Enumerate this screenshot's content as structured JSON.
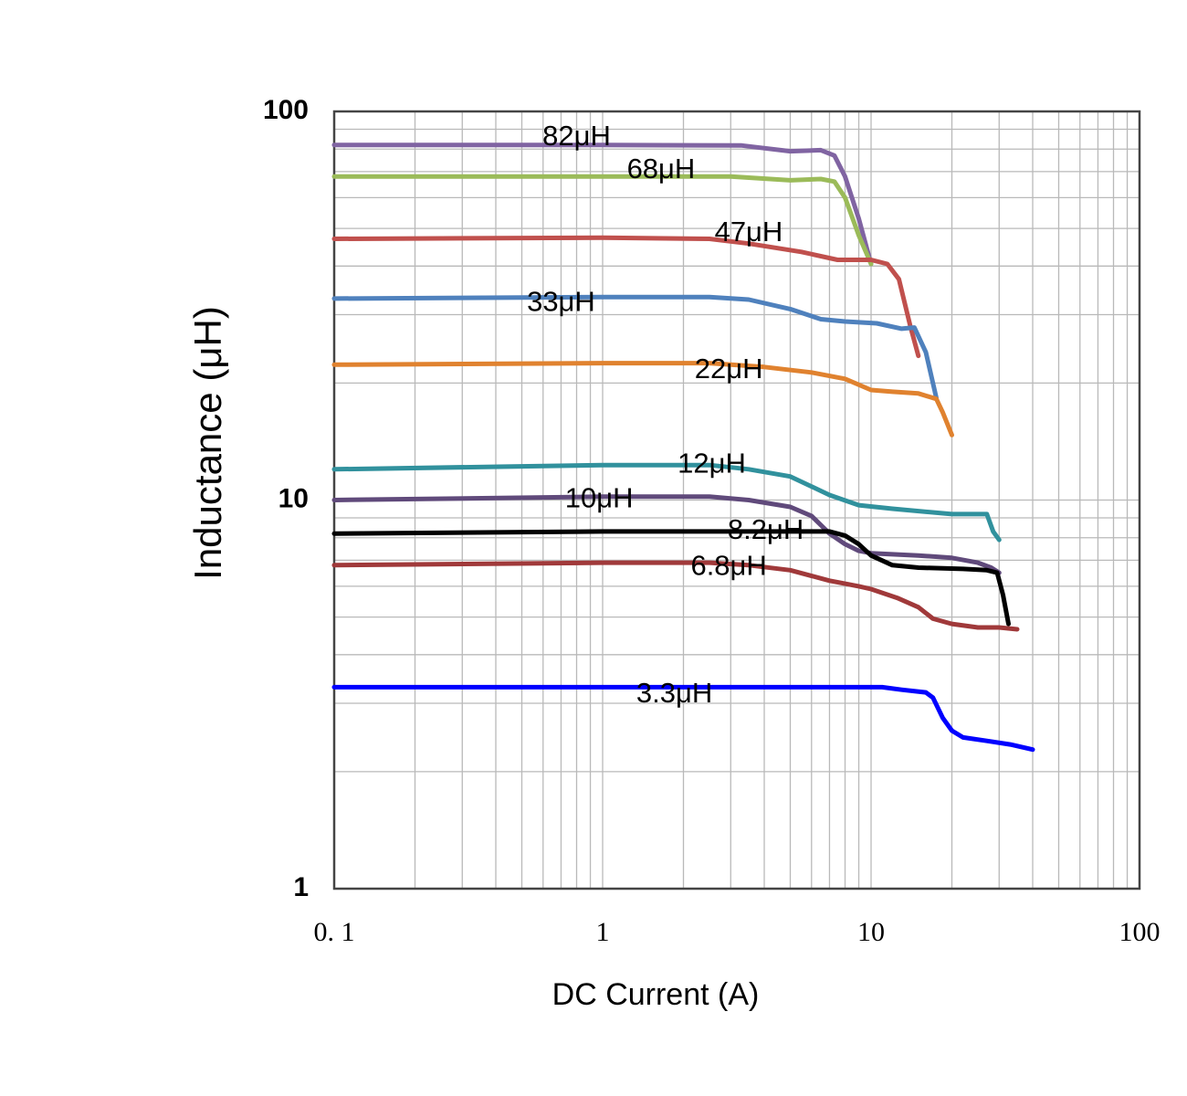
{
  "chart_data": {
    "type": "line",
    "xlabel": "DC Current (A)",
    "ylabel": "Inductance (μH)",
    "x_scale": "log",
    "y_scale": "log",
    "xlim": [
      0.1,
      100
    ],
    "ylim": [
      1,
      100
    ],
    "x_ticks": [
      "0. 1",
      "1",
      "10",
      "100"
    ],
    "y_ticks": [
      "100",
      "10",
      "1"
    ],
    "grid": true,
    "series": [
      {
        "name": "82μH",
        "color": "#8064a2",
        "points": [
          [
            0.1,
            82
          ],
          [
            1,
            82
          ],
          [
            3.3,
            81.7
          ],
          [
            5,
            79
          ],
          [
            6.5,
            79.5
          ],
          [
            7.3,
            77
          ],
          [
            8,
            68
          ],
          [
            9,
            53
          ],
          [
            10,
            40.5
          ]
        ]
      },
      {
        "name": "68μH",
        "color": "#9bbb59",
        "points": [
          [
            0.1,
            68
          ],
          [
            1,
            68
          ],
          [
            3,
            68
          ],
          [
            5,
            66.5
          ],
          [
            6.5,
            67
          ],
          [
            7.3,
            66
          ],
          [
            8,
            60
          ],
          [
            9,
            48
          ],
          [
            10,
            40.5
          ]
        ]
      },
      {
        "name": "47μH",
        "color": "#c0504d",
        "points": [
          [
            0.1,
            47
          ],
          [
            1,
            47.3
          ],
          [
            2.5,
            47
          ],
          [
            3.5,
            45.7
          ],
          [
            5.5,
            43.5
          ],
          [
            7.5,
            41.5
          ],
          [
            10,
            41.5
          ],
          [
            11.5,
            40.5
          ],
          [
            12.7,
            37
          ],
          [
            14,
            28
          ],
          [
            15,
            23.5
          ]
        ]
      },
      {
        "name": "33μH",
        "color": "#4f81bd",
        "points": [
          [
            0.1,
            33
          ],
          [
            1,
            33.3
          ],
          [
            2.5,
            33.3
          ],
          [
            3.5,
            32.8
          ],
          [
            5,
            31
          ],
          [
            6.5,
            29.2
          ],
          [
            8,
            28.8
          ],
          [
            10.5,
            28.5
          ],
          [
            13,
            27.6
          ],
          [
            14.5,
            27.8
          ],
          [
            16,
            24
          ],
          [
            17.5,
            18.3
          ]
        ]
      },
      {
        "name": "22μH",
        "color": "#e0822f",
        "points": [
          [
            0.1,
            22.3
          ],
          [
            1,
            22.5
          ],
          [
            2.5,
            22.5
          ],
          [
            4,
            22
          ],
          [
            6,
            21.3
          ],
          [
            8,
            20.5
          ],
          [
            10,
            19.2
          ],
          [
            12,
            19
          ],
          [
            15,
            18.8
          ],
          [
            17.5,
            18.2
          ],
          [
            18.5,
            16.8
          ],
          [
            20,
            14.7
          ]
        ]
      },
      {
        "name": "12μH",
        "color": "#31919d",
        "points": [
          [
            0.1,
            12
          ],
          [
            1,
            12.3
          ],
          [
            2.5,
            12.3
          ],
          [
            3.5,
            12
          ],
          [
            5,
            11.5
          ],
          [
            7,
            10.3
          ],
          [
            9,
            9.7
          ],
          [
            12,
            9.5
          ],
          [
            20,
            9.2
          ],
          [
            27,
            9.2
          ],
          [
            28.5,
            8.3
          ],
          [
            30,
            7.9
          ]
        ]
      },
      {
        "name": "10μH",
        "color": "#604a7b",
        "points": [
          [
            0.1,
            10
          ],
          [
            1,
            10.2
          ],
          [
            2.5,
            10.2
          ],
          [
            3.5,
            10
          ],
          [
            5,
            9.6
          ],
          [
            6,
            9.1
          ],
          [
            7,
            8.2
          ],
          [
            8,
            7.7
          ],
          [
            9,
            7.4
          ],
          [
            10,
            7.3
          ],
          [
            15,
            7.2
          ],
          [
            20,
            7.1
          ],
          [
            25,
            6.9
          ],
          [
            28,
            6.7
          ],
          [
            30,
            6.5
          ]
        ]
      },
      {
        "name": "8.2μH",
        "color": "#000000",
        "points": [
          [
            0.1,
            8.2
          ],
          [
            1,
            8.3
          ],
          [
            2.5,
            8.3
          ],
          [
            5,
            8.3
          ],
          [
            7,
            8.3
          ],
          [
            8,
            8.1
          ],
          [
            9,
            7.7
          ],
          [
            10,
            7.2
          ],
          [
            12,
            6.8
          ],
          [
            15,
            6.7
          ],
          [
            22,
            6.65
          ],
          [
            27,
            6.6
          ],
          [
            29.5,
            6.5
          ],
          [
            31,
            5.7
          ],
          [
            32.5,
            4.8
          ]
        ]
      },
      {
        "name": "6.8μH",
        "color": "#a0393a",
        "points": [
          [
            0.1,
            6.8
          ],
          [
            1,
            6.9
          ],
          [
            2.5,
            6.9
          ],
          [
            3.5,
            6.8
          ],
          [
            5,
            6.6
          ],
          [
            7,
            6.2
          ],
          [
            9,
            6
          ],
          [
            10,
            5.9
          ],
          [
            12.5,
            5.6
          ],
          [
            15,
            5.3
          ],
          [
            17,
            4.95
          ],
          [
            20,
            4.8
          ],
          [
            25,
            4.7
          ],
          [
            30,
            4.7
          ],
          [
            35,
            4.65
          ]
        ]
      },
      {
        "name": "3.3μH",
        "color": "#0000ff",
        "points": [
          [
            0.1,
            3.3
          ],
          [
            1,
            3.3
          ],
          [
            3,
            3.3
          ],
          [
            8,
            3.3
          ],
          [
            11,
            3.3
          ],
          [
            13,
            3.25
          ],
          [
            16,
            3.2
          ],
          [
            17,
            3.1
          ],
          [
            18.5,
            2.75
          ],
          [
            20,
            2.55
          ],
          [
            22,
            2.45
          ],
          [
            27,
            2.4
          ],
          [
            33,
            2.35
          ],
          [
            40,
            2.28
          ]
        ]
      }
    ],
    "annotations": [
      {
        "text": "82μH",
        "series": "82μH"
      },
      {
        "text": "68μH",
        "series": "68μH"
      },
      {
        "text": "47μH",
        "series": "47μH"
      },
      {
        "text": "33μH",
        "series": "33μH"
      },
      {
        "text": "22μH",
        "series": "22μH"
      },
      {
        "text": "12μH",
        "series": "12μH"
      },
      {
        "text": "10μH",
        "series": "10μH"
      },
      {
        "text": "8.2μH",
        "series": "8.2μH"
      },
      {
        "text": "6.8μH",
        "series": "6.8μH"
      },
      {
        "text": "3.3μH",
        "series": "3.3μH"
      }
    ]
  }
}
